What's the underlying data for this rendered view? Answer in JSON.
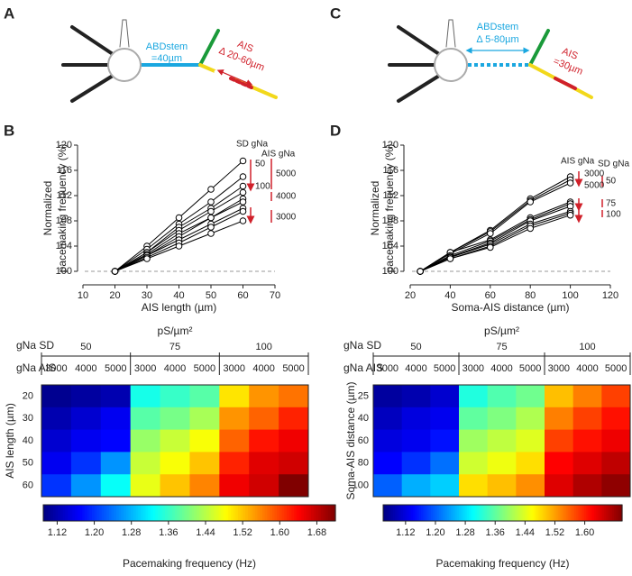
{
  "panels": [
    "A",
    "B",
    "C",
    "D"
  ],
  "diagrams": [
    {
      "stem_label": "ABDstem",
      "stem_value": "=40µm",
      "ais_label": "AIS",
      "ais_value": "Δ 20-60µm"
    },
    {
      "stem_label": "ABDstem",
      "stem_value": "Δ 5-80µm",
      "ais_label": "AIS",
      "ais_value": "=30µm"
    }
  ],
  "chart_data": [
    {
      "type": "line",
      "xlabel": "AIS length (µm)",
      "ylabel": [
        "Normalized",
        "pacemaking frequency (%)"
      ],
      "x": [
        20,
        30,
        40,
        50,
        60
      ],
      "xlim": [
        10,
        70
      ],
      "xticks": [
        10,
        20,
        30,
        40,
        50,
        60,
        70
      ],
      "ylim": [
        100,
        120
      ],
      "yticks": [
        100,
        104,
        108,
        112,
        116,
        120
      ],
      "hline": 100,
      "color": "#000000",
      "marker_fill": "#ffffff",
      "annotations": [
        "SD gNa",
        "AIS gNa",
        "50",
        "100",
        "5000",
        "4000",
        "3000"
      ],
      "series": [
        {
          "values": [
            100,
            104,
            108.5,
            113,
            117.5
          ]
        },
        {
          "values": [
            100,
            103.5,
            107.5,
            111,
            115
          ]
        },
        {
          "values": [
            100,
            103,
            107,
            110,
            113.5
          ]
        },
        {
          "values": [
            100,
            103,
            106.5,
            109.5,
            112.5
          ]
        },
        {
          "values": [
            100,
            102.7,
            106,
            108.5,
            111.5
          ]
        },
        {
          "values": [
            100,
            102.5,
            105.5,
            108.5,
            111
          ]
        },
        {
          "values": [
            100,
            102.5,
            105,
            107.5,
            110
          ]
        },
        {
          "values": [
            100,
            102.2,
            104.5,
            107,
            109.5
          ]
        },
        {
          "values": [
            100,
            102,
            104,
            106,
            108
          ]
        }
      ]
    },
    {
      "type": "line",
      "xlabel": "Soma-AIS distance (µm)",
      "ylabel": [
        "Normalized",
        "pacemaking frequency (%)"
      ],
      "x": [
        25,
        40,
        60,
        80,
        100
      ],
      "xlim": [
        20,
        120
      ],
      "xticks": [
        20,
        40,
        60,
        80,
        100,
        120
      ],
      "ylim": [
        100,
        120
      ],
      "yticks": [
        100,
        104,
        108,
        112,
        116,
        120
      ],
      "hline": 100,
      "color": "#000000",
      "marker_fill": "#ffffff",
      "annotations": [
        "AIS gNa",
        "SD gNa",
        "3000",
        "5000",
        "50",
        "75",
        "100"
      ],
      "series": [
        {
          "values": [
            100,
            103,
            106.5,
            111.5,
            115
          ]
        },
        {
          "values": [
            100,
            103,
            106.3,
            111.2,
            114.5
          ]
        },
        {
          "values": [
            100,
            102.8,
            106,
            111,
            114
          ]
        },
        {
          "values": [
            100,
            103,
            105,
            108.5,
            111
          ]
        },
        {
          "values": [
            100,
            102.5,
            104.8,
            108.2,
            110.7
          ]
        },
        {
          "values": [
            100,
            102.3,
            104.5,
            108,
            110.3
          ]
        },
        {
          "values": [
            100,
            102.2,
            104.3,
            107.5,
            109.5
          ]
        },
        {
          "values": [
            100,
            102,
            104,
            107.2,
            109.2
          ]
        },
        {
          "values": [
            100,
            102,
            103.8,
            106.8,
            108.9
          ]
        }
      ]
    },
    {
      "type": "heatmap",
      "title": "pS/µm²",
      "group_label": "gNa SD",
      "groups": [
        50,
        75,
        100
      ],
      "sub_label": "gNa AIS",
      "subs": [
        3000,
        4000,
        5000
      ],
      "ylabel": "AIS length (µm)",
      "rows": [
        20,
        30,
        40,
        50,
        60
      ],
      "colormap": "jet",
      "values": [
        [
          1.1,
          1.11,
          1.12,
          1.34,
          1.36,
          1.38,
          1.5,
          1.55,
          1.57
        ],
        [
          1.12,
          1.14,
          1.16,
          1.38,
          1.4,
          1.43,
          1.55,
          1.58,
          1.62
        ],
        [
          1.14,
          1.16,
          1.17,
          1.42,
          1.45,
          1.48,
          1.58,
          1.63,
          1.65
        ],
        [
          1.16,
          1.2,
          1.26,
          1.45,
          1.48,
          1.52,
          1.62,
          1.66,
          1.67
        ],
        [
          1.2,
          1.26,
          1.33,
          1.47,
          1.52,
          1.56,
          1.65,
          1.67,
          1.72
        ]
      ],
      "zlim": [
        1.09,
        1.72
      ],
      "zticks": [
        1.12,
        {
          "value": 1.2,
          "label": "1.20"
        },
        1.28,
        1.36,
        1.44,
        1.52,
        {
          "value": 1.6,
          "label": "1.60"
        },
        1.68
      ],
      "zlabel": "Pacemaking frequency (Hz)"
    },
    {
      "type": "heatmap",
      "title": "pS/µm²",
      "group_label": "gNa SD",
      "groups": [
        50,
        75,
        100
      ],
      "sub_label": "gNa AIS",
      "subs": [
        3000,
        4000,
        5000
      ],
      "ylabel": "Soma-AIS distance (µm)",
      "rows": [
        25,
        40,
        60,
        80,
        100
      ],
      "colormap": "jet",
      "values": [
        [
          1.08,
          1.09,
          1.11,
          1.32,
          1.35,
          1.37,
          1.5,
          1.54,
          1.58
        ],
        [
          1.1,
          1.12,
          1.13,
          1.36,
          1.38,
          1.41,
          1.54,
          1.58,
          1.61
        ],
        [
          1.12,
          1.13,
          1.15,
          1.4,
          1.42,
          1.44,
          1.58,
          1.61,
          1.63
        ],
        [
          1.14,
          1.17,
          1.21,
          1.43,
          1.45,
          1.48,
          1.62,
          1.64,
          1.66
        ],
        [
          1.2,
          1.25,
          1.27,
          1.48,
          1.5,
          1.53,
          1.64,
          1.67,
          1.69
        ]
      ],
      "zlim": [
        1.06,
        1.7
      ],
      "zticks": [
        1.12,
        {
          "value": 1.2,
          "label": "1.20"
        },
        1.28,
        1.36,
        1.44,
        1.52,
        {
          "value": 1.6,
          "label": "1.60"
        }
      ],
      "zlabel": "Pacemaking frequency (Hz)"
    }
  ]
}
